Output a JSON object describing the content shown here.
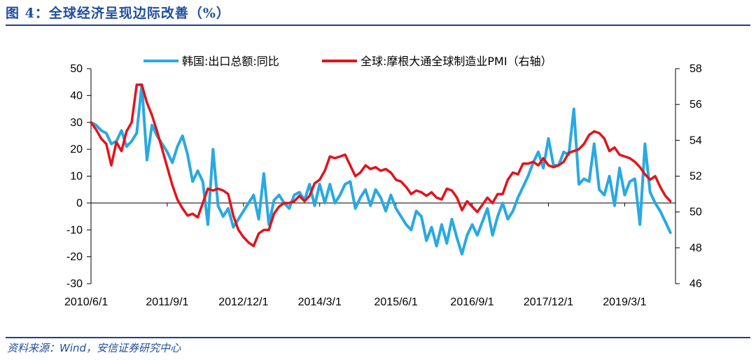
{
  "figure": {
    "title": "图 4：全球经济呈现边际改善（%）",
    "source": "资料来源：Wind，安信证券研究中心"
  },
  "colors": {
    "series_korea": "#29a9e1",
    "series_pmi": "#e3121b",
    "rule": "#1f3f8f",
    "title": "#1f4e9c"
  },
  "chart_data": {
    "type": "line",
    "x_tick_labels": [
      "2010/6/1",
      "2011/9/1",
      "2012/12/1",
      "2014/3/1",
      "2015/6/1",
      "2016/9/1",
      "2017/12/1",
      "2019/3/1"
    ],
    "x_range": [
      "2010/6/1",
      "2019/12/1"
    ],
    "y_left": {
      "lim": [
        -30,
        50
      ],
      "ticks": [
        -30,
        -20,
        -10,
        0,
        10,
        20,
        30,
        40,
        50
      ]
    },
    "y_right": {
      "lim": [
        46,
        58
      ],
      "ticks": [
        46,
        48,
        50,
        52,
        54,
        56,
        58
      ]
    },
    "legend_position": "top-center",
    "grid": false,
    "series": [
      {
        "name": "韩国:出口总额:同比",
        "axis": "left",
        "color": "#29a9e1",
        "points": [
          [
            "2010/6/1",
            30
          ],
          [
            "2010/7/1",
            29
          ],
          [
            "2010/8/1",
            27
          ],
          [
            "2010/9/1",
            26
          ],
          [
            "2010/10/1",
            22
          ],
          [
            "2010/11/1",
            23
          ],
          [
            "2010/12/1",
            27
          ],
          [
            "2011/1/1",
            21
          ],
          [
            "2011/2/1",
            23
          ],
          [
            "2011/3/1",
            26
          ],
          [
            "2011/4/1",
            44
          ],
          [
            "2011/5/1",
            16
          ],
          [
            "2011/6/1",
            29
          ],
          [
            "2011/7/1",
            25
          ],
          [
            "2011/8/1",
            22
          ],
          [
            "2011/9/1",
            19
          ],
          [
            "2011/10/1",
            15
          ],
          [
            "2011/11/1",
            21
          ],
          [
            "2011/12/1",
            25
          ],
          [
            "2012/1/1",
            18
          ],
          [
            "2012/2/1",
            8
          ],
          [
            "2012/3/1",
            12
          ],
          [
            "2012/4/1",
            8
          ],
          [
            "2012/5/1",
            -8
          ],
          [
            "2012/6/1",
            20
          ],
          [
            "2012/7/1",
            -1
          ],
          [
            "2012/8/1",
            -5
          ],
          [
            "2012/9/1",
            -2
          ],
          [
            "2012/10/1",
            -9
          ],
          [
            "2012/11/1",
            -6
          ],
          [
            "2012/12/1",
            -3
          ],
          [
            "2013/1/1",
            0
          ],
          [
            "2013/2/1",
            3
          ],
          [
            "2013/3/1",
            -6
          ],
          [
            "2013/4/1",
            11
          ],
          [
            "2013/5/1",
            -8
          ],
          [
            "2013/6/1",
            1
          ],
          [
            "2013/7/1",
            3
          ],
          [
            "2013/8/1",
            0
          ],
          [
            "2013/9/1",
            -2
          ],
          [
            "2013/10/1",
            3
          ],
          [
            "2013/11/1",
            4
          ],
          [
            "2013/12/1",
            1
          ],
          [
            "2014/1/1",
            7
          ],
          [
            "2014/2/1",
            -1
          ],
          [
            "2014/3/1",
            7
          ],
          [
            "2014/4/1",
            0
          ],
          [
            "2014/5/1",
            7
          ],
          [
            "2014/6/1",
            0
          ],
          [
            "2014/7/1",
            3
          ],
          [
            "2014/8/1",
            7
          ],
          [
            "2014/9/1",
            8
          ],
          [
            "2014/10/1",
            -2
          ],
          [
            "2014/11/1",
            2
          ],
          [
            "2014/12/1",
            5
          ],
          [
            "2015/1/1",
            -1
          ],
          [
            "2015/2/1",
            5
          ],
          [
            "2015/3/1",
            2
          ],
          [
            "2015/4/1",
            -3
          ],
          [
            "2015/5/1",
            3
          ],
          [
            "2015/6/1",
            -2
          ],
          [
            "2015/7/1",
            -5
          ],
          [
            "2015/8/1",
            -8
          ],
          [
            "2015/9/1",
            -10
          ],
          [
            "2015/10/1",
            -3
          ],
          [
            "2015/11/1",
            -5
          ],
          [
            "2015/12/1",
            -14
          ],
          [
            "2016/1/1",
            -9
          ],
          [
            "2016/2/1",
            -16
          ],
          [
            "2016/3/1",
            -8
          ],
          [
            "2016/4/1",
            -15
          ],
          [
            "2016/5/1",
            -6
          ],
          [
            "2016/6/1",
            -13
          ],
          [
            "2016/7/1",
            -19
          ],
          [
            "2016/8/1",
            -12
          ],
          [
            "2016/9/1",
            -8
          ],
          [
            "2016/10/1",
            -12
          ],
          [
            "2016/11/1",
            -7
          ],
          [
            "2016/12/1",
            -2
          ],
          [
            "2017/1/1",
            -12
          ],
          [
            "2017/2/1",
            -5
          ],
          [
            "2017/3/1",
            0
          ],
          [
            "2017/4/1",
            -6
          ],
          [
            "2017/5/1",
            -3
          ],
          [
            "2017/6/1",
            2
          ],
          [
            "2017/7/1",
            6
          ],
          [
            "2017/8/1",
            10
          ],
          [
            "2017/9/1",
            15
          ],
          [
            "2017/10/1",
            19
          ],
          [
            "2017/11/1",
            13
          ],
          [
            "2017/12/1",
            24
          ],
          [
            "2018/1/1",
            14
          ],
          [
            "2018/2/1",
            14
          ],
          [
            "2018/3/1",
            19
          ],
          [
            "2018/4/1",
            18
          ],
          [
            "2018/5/1",
            35
          ],
          [
            "2018/6/1",
            7
          ],
          [
            "2018/7/1",
            9
          ],
          [
            "2018/8/1",
            8
          ],
          [
            "2018/9/1",
            22
          ],
          [
            "2018/10/1",
            5
          ],
          [
            "2018/11/1",
            3
          ],
          [
            "2018/12/1",
            10
          ],
          [
            "2019/1/1",
            -1
          ],
          [
            "2019/2/1",
            13
          ],
          [
            "2019/3/1",
            3
          ],
          [
            "2019/4/1",
            8
          ],
          [
            "2019/5/1",
            9
          ],
          [
            "2019/6/1",
            -8
          ],
          [
            "2019/7/1",
            22
          ],
          [
            "2019/8/1",
            4
          ],
          [
            "2019/9/1",
            0
          ],
          [
            "2019/10/1",
            -3
          ],
          [
            "2019/11/1",
            -7
          ],
          [
            "2019/12/1",
            -11
          ]
        ]
      },
      {
        "name": "全球:摩根大通全球制造业PMI（右轴）",
        "axis": "right",
        "color": "#e3121b",
        "points": [
          [
            "2010/6/1",
            55.0
          ],
          [
            "2010/7/1",
            54.6
          ],
          [
            "2010/8/1",
            54.1
          ],
          [
            "2010/9/1",
            53.8
          ],
          [
            "2010/10/1",
            52.6
          ],
          [
            "2010/11/1",
            53.9
          ],
          [
            "2010/12/1",
            53.4
          ],
          [
            "2011/1/1",
            54.5
          ],
          [
            "2011/2/1",
            55.0
          ],
          [
            "2011/3/1",
            57.1
          ],
          [
            "2011/4/1",
            57.1
          ],
          [
            "2011/5/1",
            56.1
          ],
          [
            "2011/6/1",
            55.4
          ],
          [
            "2011/7/1",
            54.5
          ],
          [
            "2011/8/1",
            53.5
          ],
          [
            "2011/9/1",
            52.5
          ],
          [
            "2011/10/1",
            51.5
          ],
          [
            "2011/11/1",
            50.7
          ],
          [
            "2011/12/1",
            50.2
          ],
          [
            "2012/1/1",
            49.8
          ],
          [
            "2012/2/1",
            49.9
          ],
          [
            "2012/3/1",
            49.7
          ],
          [
            "2012/4/1",
            50.5
          ],
          [
            "2012/5/1",
            51.3
          ],
          [
            "2012/6/1",
            51.2
          ],
          [
            "2012/7/1",
            51.3
          ],
          [
            "2012/8/1",
            51.2
          ],
          [
            "2012/9/1",
            51.0
          ],
          [
            "2012/10/1",
            49.8
          ],
          [
            "2012/11/1",
            49.0
          ],
          [
            "2012/12/1",
            48.6
          ],
          [
            "2013/1/1",
            48.3
          ],
          [
            "2013/2/1",
            48.1
          ],
          [
            "2013/3/1",
            48.8
          ],
          [
            "2013/4/1",
            49.0
          ],
          [
            "2013/5/1",
            49.0
          ],
          [
            "2013/6/1",
            49.9
          ],
          [
            "2013/7/1",
            50.3
          ],
          [
            "2013/8/1",
            50.5
          ],
          [
            "2013/9/1",
            50.5
          ],
          [
            "2013/10/1",
            50.6
          ],
          [
            "2013/11/1",
            50.9
          ],
          [
            "2013/12/1",
            50.6
          ],
          [
            "2014/1/1",
            50.9
          ],
          [
            "2014/2/1",
            51.6
          ],
          [
            "2014/3/1",
            51.8
          ],
          [
            "2014/4/1",
            52.3
          ],
          [
            "2014/5/1",
            53.1
          ],
          [
            "2014/6/1",
            53.0
          ],
          [
            "2014/7/1",
            53.1
          ],
          [
            "2014/8/1",
            53.2
          ],
          [
            "2014/9/1",
            52.6
          ],
          [
            "2014/10/1",
            52.0
          ],
          [
            "2014/11/1",
            52.2
          ],
          [
            "2014/12/1",
            52.6
          ],
          [
            "2015/1/1",
            52.4
          ],
          [
            "2015/2/1",
            52.5
          ],
          [
            "2015/3/1",
            52.3
          ],
          [
            "2015/4/1",
            52.4
          ],
          [
            "2015/5/1",
            52.2
          ],
          [
            "2015/6/1",
            51.8
          ],
          [
            "2015/7/1",
            51.7
          ],
          [
            "2015/8/1",
            51.4
          ],
          [
            "2015/9/1",
            51.0
          ],
          [
            "2015/10/1",
            51.2
          ],
          [
            "2015/11/1",
            51.1
          ],
          [
            "2015/12/1",
            50.9
          ],
          [
            "2016/1/1",
            51.1
          ],
          [
            "2016/2/1",
            50.8
          ],
          [
            "2016/3/1",
            50.7
          ],
          [
            "2016/4/1",
            51.3
          ],
          [
            "2016/5/1",
            51.2
          ],
          [
            "2016/6/1",
            50.8
          ],
          [
            "2016/7/1",
            50.1
          ],
          [
            "2016/8/1",
            50.6
          ],
          [
            "2016/9/1",
            50.3
          ],
          [
            "2016/10/1",
            50.0
          ],
          [
            "2016/11/1",
            50.4
          ],
          [
            "2016/12/1",
            50.8
          ],
          [
            "2017/1/1",
            50.5
          ],
          [
            "2017/2/1",
            51.0
          ],
          [
            "2017/3/1",
            51.0
          ],
          [
            "2017/4/1",
            51.8
          ],
          [
            "2017/5/1",
            52.2
          ],
          [
            "2017/6/1",
            52.1
          ],
          [
            "2017/7/1",
            52.7
          ],
          [
            "2017/8/1",
            52.7
          ],
          [
            "2017/9/1",
            52.8
          ],
          [
            "2017/10/1",
            52.6
          ],
          [
            "2017/11/1",
            53.0
          ],
          [
            "2017/12/1",
            52.6
          ],
          [
            "2018/1/1",
            52.5
          ],
          [
            "2018/2/1",
            52.6
          ],
          [
            "2018/3/1",
            52.8
          ],
          [
            "2018/4/1",
            53.3
          ],
          [
            "2018/5/1",
            53.4
          ],
          [
            "2018/6/1",
            53.5
          ],
          [
            "2018/7/1",
            53.8
          ],
          [
            "2018/8/1",
            54.3
          ],
          [
            "2018/9/1",
            54.5
          ],
          [
            "2018/10/1",
            54.4
          ],
          [
            "2018/11/1",
            54.1
          ],
          [
            "2018/12/1",
            53.4
          ],
          [
            "2019/1/1",
            53.6
          ],
          [
            "2019/2/1",
            53.2
          ],
          [
            "2019/3/1",
            53.1
          ],
          [
            "2019/4/1",
            53.0
          ],
          [
            "2019/5/1",
            52.8
          ],
          [
            "2019/6/1",
            52.5
          ],
          [
            "2019/7/1",
            52.1
          ],
          [
            "2019/8/1",
            51.8
          ],
          [
            "2019/9/1",
            52.0
          ],
          [
            "2019/10/1",
            51.4
          ],
          [
            "2019/11/1",
            50.9
          ],
          [
            "2019/12/1",
            50.6
          ]
        ]
      }
    ]
  }
}
